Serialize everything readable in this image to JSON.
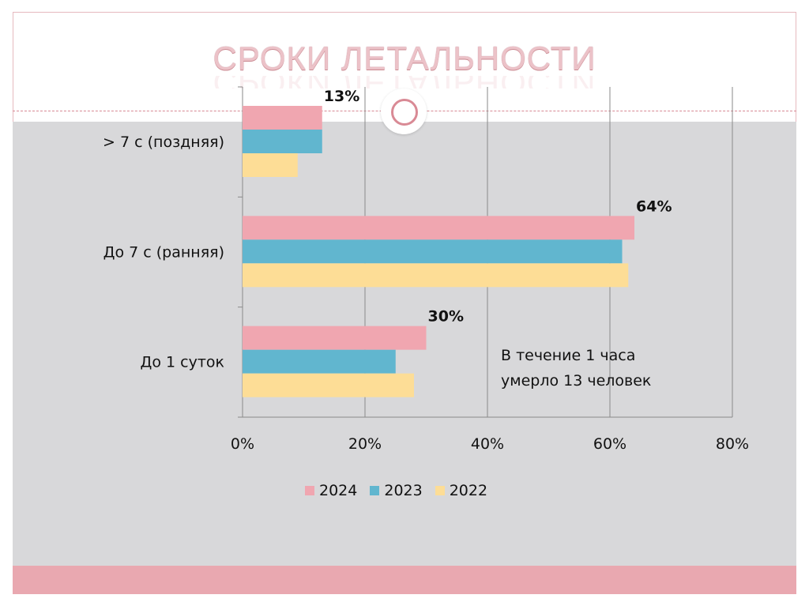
{
  "title": "СРОКИ ЛЕТАЛЬНОСТИ",
  "annotation": {
    "line1": "В течение 1 часа",
    "line2": "умерло 13 человек"
  },
  "colors": {
    "2024": "#f0a6b0",
    "2023": "#61b6cf",
    "2022": "#fddd96",
    "gridline": "#8a8a8a"
  },
  "chart_data": {
    "type": "bar",
    "orientation": "horizontal",
    "categories": [
      "> 7 с (поздняя)",
      "До 7 с (ранняя)",
      "До 1 суток"
    ],
    "series": [
      {
        "name": "2024",
        "values": [
          13,
          64,
          30
        ]
      },
      {
        "name": "2023",
        "values": [
          13,
          62,
          25
        ]
      },
      {
        "name": "2022",
        "values": [
          9,
          63,
          28
        ]
      }
    ],
    "data_labels": [
      {
        "category": "> 7 с (поздняя)",
        "series": "2024",
        "text": "13%"
      },
      {
        "category": "До 7 с (ранняя)",
        "series": "2024",
        "text": "64%"
      },
      {
        "category": "До 1 суток",
        "series": "2024",
        "text": "30%"
      }
    ],
    "x_ticks": [
      "0%",
      "20%",
      "40%",
      "60%",
      "80%"
    ],
    "xlim": [
      0,
      80
    ],
    "grid": true,
    "legend": [
      "2024",
      "2023",
      "2022"
    ],
    "legend_position": "bottom"
  }
}
